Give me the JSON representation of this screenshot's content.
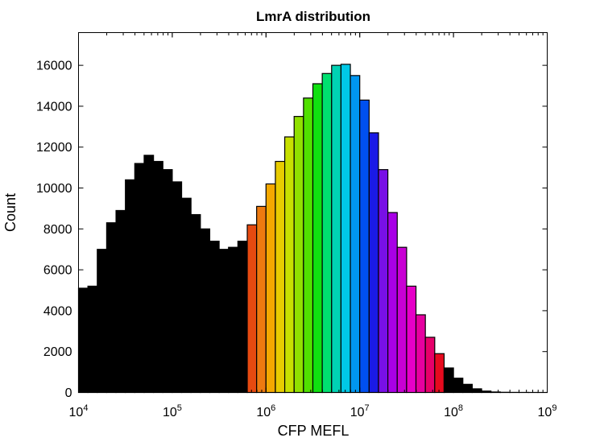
{
  "chart_data": {
    "type": "bar",
    "title": "LmrA distribution",
    "xlabel": "CFP MEFL",
    "ylabel": "Count",
    "x_scale": "log10",
    "xlim": [
      10000,
      1000000000
    ],
    "ylim": [
      0,
      17600
    ],
    "grid": false,
    "legend": "none",
    "x_ticks": [
      {
        "base": "10",
        "exp": "4",
        "value": 10000
      },
      {
        "base": "10",
        "exp": "5",
        "value": 100000
      },
      {
        "base": "10",
        "exp": "6",
        "value": 1000000
      },
      {
        "base": "10",
        "exp": "7",
        "value": 10000000
      },
      {
        "base": "10",
        "exp": "8",
        "value": 100000000
      },
      {
        "base": "10",
        "exp": "9",
        "value": 1000000000
      }
    ],
    "y_ticks": [
      {
        "label": "0",
        "value": 0
      },
      {
        "label": "2000",
        "value": 2000
      },
      {
        "label": "4000",
        "value": 4000
      },
      {
        "label": "6000",
        "value": 6000
      },
      {
        "label": "8000",
        "value": 8000
      },
      {
        "label": "10000",
        "value": 10000
      },
      {
        "label": "12000",
        "value": 12000
      },
      {
        "label": "14000",
        "value": 14000
      },
      {
        "label": "16000",
        "value": 16000
      }
    ],
    "bins_per_decade": 10,
    "bin_start": 10000,
    "values": [
      5100,
      5200,
      7000,
      8300,
      8900,
      10400,
      11200,
      11600,
      11300,
      10900,
      10300,
      9500,
      8700,
      8000,
      7400,
      7000,
      7100,
      7400,
      8200,
      9100,
      10200,
      11300,
      12500,
      13500,
      14400,
      15100,
      15600,
      16000,
      16050,
      15500,
      14300,
      12700,
      10900,
      8800,
      7100,
      5200,
      3800,
      2700,
      1900,
      1200,
      700,
      400,
      180,
      70,
      25,
      10,
      5,
      3,
      2,
      1
    ],
    "colors": [
      "#000000",
      "#000000",
      "#000000",
      "#000000",
      "#000000",
      "#000000",
      "#000000",
      "#000000",
      "#000000",
      "#000000",
      "#000000",
      "#000000",
      "#000000",
      "#000000",
      "#000000",
      "#000000",
      "#000000",
      "#000000",
      "#e64a10",
      "#ee7a10",
      "#f4a800",
      "#e8cc00",
      "#c8e000",
      "#90e000",
      "#50e000",
      "#10e010",
      "#00e070",
      "#00d2b4",
      "#00c8e6",
      "#0096f0",
      "#0050f0",
      "#1a1ae6",
      "#7810e6",
      "#a800e6",
      "#c800d4",
      "#e600c8",
      "#e600a0",
      "#e6006a",
      "#e60a1e",
      "#000000",
      "#000000",
      "#000000",
      "#000000",
      "#000000",
      "#000000",
      "#000000",
      "#000000",
      "#000000",
      "#000000",
      "#000000"
    ]
  }
}
